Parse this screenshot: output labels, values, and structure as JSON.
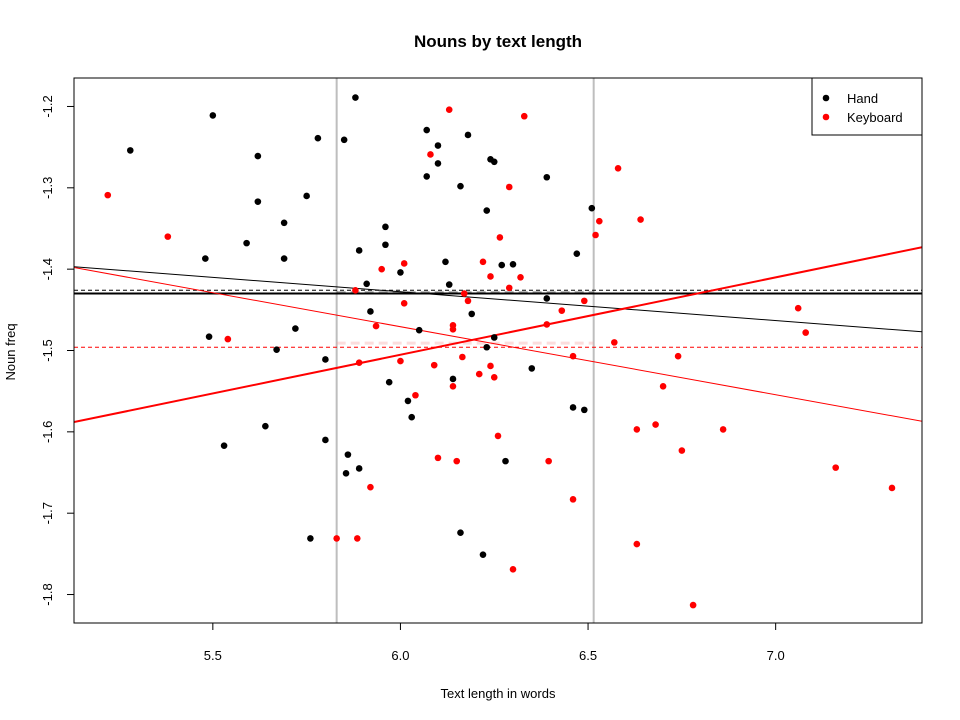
{
  "chart_data": {
    "type": "scatter",
    "title": "Nouns by text length",
    "xlabel": "Text length in words",
    "ylabel": "Noun freq",
    "xlim": [
      5.13,
      7.39
    ],
    "ylim": [
      -1.835,
      -1.165
    ],
    "x_ticks": [
      5.5,
      6.0,
      6.5,
      7.0
    ],
    "x_tick_labels": [
      "5.5",
      "6.0",
      "6.5",
      "7.0"
    ],
    "y_ticks": [
      -1.2,
      -1.3,
      -1.4,
      -1.5,
      -1.6,
      -1.7,
      -1.8
    ],
    "y_tick_labels": [
      "-1.2",
      "-1.3",
      "-1.4",
      "-1.5",
      "-1.6",
      "-1.7",
      "-1.8"
    ],
    "grid": false,
    "legend_position": "top-right",
    "vertical_lines": [
      {
        "x": 5.83,
        "color": "#bebebe"
      },
      {
        "x": 6.515,
        "color": "#bebebe"
      }
    ],
    "series": [
      {
        "name": "Hand",
        "color": "#000000",
        "points": [
          [
            5.28,
            -1.254
          ],
          [
            5.5,
            -1.211
          ],
          [
            5.48,
            -1.387
          ],
          [
            5.49,
            -1.483
          ],
          [
            5.53,
            -1.617
          ],
          [
            5.59,
            -1.368
          ],
          [
            5.62,
            -1.261
          ],
          [
            5.62,
            -1.317
          ],
          [
            5.64,
            -1.593
          ],
          [
            5.67,
            -1.499
          ],
          [
            5.69,
            -1.387
          ],
          [
            5.69,
            -1.343
          ],
          [
            5.72,
            -1.473
          ],
          [
            5.75,
            -1.31
          ],
          [
            5.76,
            -1.731
          ],
          [
            5.78,
            -1.239
          ],
          [
            5.8,
            -1.61
          ],
          [
            5.8,
            -1.511
          ],
          [
            5.85,
            -1.241
          ],
          [
            5.86,
            -1.628
          ],
          [
            5.855,
            -1.651
          ],
          [
            5.88,
            -1.189
          ],
          [
            5.89,
            -1.377
          ],
          [
            5.89,
            -1.645
          ],
          [
            5.91,
            -1.418
          ],
          [
            5.92,
            -1.452
          ],
          [
            5.96,
            -1.348
          ],
          [
            5.96,
            -1.37
          ],
          [
            5.97,
            -1.539
          ],
          [
            6.0,
            -1.404
          ],
          [
            6.02,
            -1.562
          ],
          [
            6.03,
            -1.582
          ],
          [
            6.05,
            -1.475
          ],
          [
            6.07,
            -1.229
          ],
          [
            6.07,
            -1.286
          ],
          [
            6.1,
            -1.27
          ],
          [
            6.1,
            -1.248
          ],
          [
            6.12,
            -1.391
          ],
          [
            6.13,
            -1.419
          ],
          [
            6.14,
            -1.535
          ],
          [
            6.16,
            -1.298
          ],
          [
            6.16,
            -1.724
          ],
          [
            6.18,
            -1.235
          ],
          [
            6.19,
            -1.455
          ],
          [
            6.22,
            -1.751
          ],
          [
            6.23,
            -1.496
          ],
          [
            6.23,
            -1.328
          ],
          [
            6.24,
            -1.265
          ],
          [
            6.25,
            -1.268
          ],
          [
            6.25,
            -1.484
          ],
          [
            6.27,
            -1.395
          ],
          [
            6.28,
            -1.636
          ],
          [
            6.3,
            -1.394
          ],
          [
            6.35,
            -1.522
          ],
          [
            6.39,
            -1.287
          ],
          [
            6.39,
            -1.436
          ],
          [
            6.46,
            -1.57
          ],
          [
            6.47,
            -1.381
          ],
          [
            6.49,
            -1.573
          ],
          [
            6.51,
            -1.325
          ]
        ]
      },
      {
        "name": "Keyboard",
        "color": "#ff0000",
        "points": [
          [
            5.22,
            -1.309
          ],
          [
            5.38,
            -1.36
          ],
          [
            5.54,
            -1.486
          ],
          [
            5.83,
            -1.731
          ],
          [
            5.88,
            -1.426
          ],
          [
            5.885,
            -1.731
          ],
          [
            5.89,
            -1.515
          ],
          [
            5.92,
            -1.668
          ],
          [
            5.935,
            -1.47
          ],
          [
            5.95,
            -1.4
          ],
          [
            6.0,
            -1.513
          ],
          [
            6.01,
            -1.442
          ],
          [
            6.01,
            -1.393
          ],
          [
            6.04,
            -1.555
          ],
          [
            6.08,
            -1.259
          ],
          [
            6.09,
            -1.518
          ],
          [
            6.1,
            -1.632
          ],
          [
            6.13,
            -1.204
          ],
          [
            6.14,
            -1.474
          ],
          [
            6.14,
            -1.469
          ],
          [
            6.14,
            -1.544
          ],
          [
            6.15,
            -1.636
          ],
          [
            6.165,
            -1.508
          ],
          [
            6.17,
            -1.43
          ],
          [
            6.18,
            -1.439
          ],
          [
            6.21,
            -1.529
          ],
          [
            6.22,
            -1.391
          ],
          [
            6.24,
            -1.519
          ],
          [
            6.24,
            -1.409
          ],
          [
            6.25,
            -1.533
          ],
          [
            6.26,
            -1.605
          ],
          [
            6.265,
            -1.361
          ],
          [
            6.29,
            -1.299
          ],
          [
            6.29,
            -1.423
          ],
          [
            6.3,
            -1.769
          ],
          [
            6.32,
            -1.41
          ],
          [
            6.33,
            -1.212
          ],
          [
            6.39,
            -1.468
          ],
          [
            6.395,
            -1.636
          ],
          [
            6.43,
            -1.451
          ],
          [
            6.46,
            -1.683
          ],
          [
            6.46,
            -1.507
          ],
          [
            6.49,
            -1.439
          ],
          [
            6.52,
            -1.358
          ],
          [
            6.53,
            -1.341
          ],
          [
            6.57,
            -1.49
          ],
          [
            6.58,
            -1.276
          ],
          [
            6.63,
            -1.597
          ],
          [
            6.63,
            -1.738
          ],
          [
            6.64,
            -1.339
          ],
          [
            6.68,
            -1.591
          ],
          [
            6.7,
            -1.544
          ],
          [
            6.74,
            -1.507
          ],
          [
            6.75,
            -1.623
          ],
          [
            6.78,
            -1.813
          ],
          [
            6.86,
            -1.597
          ],
          [
            7.06,
            -1.448
          ],
          [
            7.08,
            -1.478
          ],
          [
            7.16,
            -1.644
          ],
          [
            7.31,
            -1.669
          ]
        ]
      }
    ],
    "horizontal_lines": [
      {
        "y": -1.426,
        "color": "#000000",
        "style": "dashed",
        "x_range": [
          5.13,
          7.39
        ]
      },
      {
        "y": -1.43,
        "color": "#000000",
        "style": "solid",
        "x_range": [
          5.13,
          7.39
        ]
      },
      {
        "y": -1.496,
        "color": "#ff0000",
        "style": "dashed",
        "x_range": [
          5.13,
          7.39
        ]
      },
      {
        "y": -1.429,
        "color": "#000000",
        "style": "dashed-light",
        "x_range": [
          5.83,
          6.515
        ]
      },
      {
        "y": -1.491,
        "color": "#f4a0a0",
        "style": "dashed-light",
        "x_range": [
          5.83,
          6.515
        ]
      }
    ],
    "regression_lines": [
      {
        "color": "#000000",
        "x": [
          5.13,
          7.39
        ],
        "y": [
          -1.397,
          -1.477
        ],
        "width": "thin"
      },
      {
        "color": "#ff0000",
        "x": [
          5.13,
          7.39
        ],
        "y": [
          -1.398,
          -1.587
        ],
        "width": "thin"
      },
      {
        "color": "#ff0000",
        "x": [
          5.13,
          7.39
        ],
        "y": [
          -1.588,
          -1.373
        ],
        "width": "thick"
      }
    ]
  }
}
